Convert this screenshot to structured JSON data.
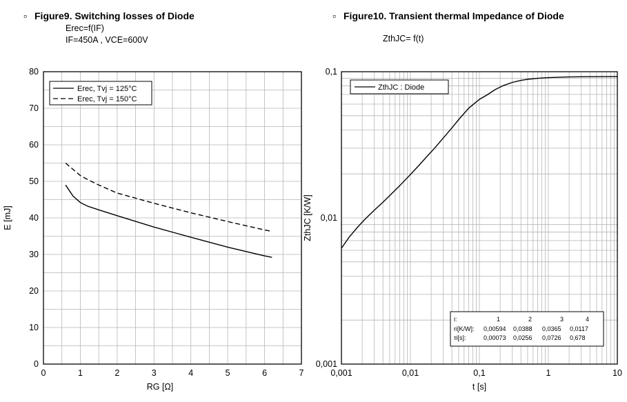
{
  "chart_data": [
    {
      "type": "line",
      "marker": "▫",
      "title": "Figure9. Switching losses of Diode",
      "subtitle_lines": [
        "Erec=f(IF)",
        "IF=450A , VCE=600V"
      ],
      "xlabel": "RG [Ω]",
      "ylabel": "E [mJ]",
      "xlim": [
        0,
        7
      ],
      "ylim": [
        0,
        80
      ],
      "xticks": [
        0,
        1,
        2,
        3,
        4,
        5,
        6,
        7
      ],
      "yticks": [
        0,
        10,
        20,
        30,
        40,
        50,
        60,
        70,
        80
      ],
      "grid": true,
      "legend_position": "top-left",
      "series": [
        {
          "name": "Erec, Tvj = 125°C",
          "style": "solid",
          "x": [
            0.6,
            0.8,
            1.0,
            1.2,
            1.5,
            2.0,
            3.0,
            4.0,
            5.0,
            6.0,
            6.2
          ],
          "y": [
            49,
            46,
            44.2,
            43.2,
            42.2,
            40.6,
            37.5,
            34.7,
            32.0,
            29.6,
            29.2
          ]
        },
        {
          "name": "Erec, Tvj = 150°C",
          "style": "dashed",
          "x": [
            0.6,
            0.8,
            1.0,
            1.2,
            1.5,
            2.0,
            3.0,
            4.0,
            5.0,
            6.0,
            6.2
          ],
          "y": [
            55,
            53.3,
            51.6,
            50.5,
            49.0,
            46.8,
            44.0,
            41.4,
            39.0,
            36.7,
            36.3
          ]
        }
      ]
    },
    {
      "type": "line",
      "marker": "▫",
      "title": "Figure10. Transient thermal Impedance of Diode",
      "subtitle": "ZthJC= f(t)",
      "xlabel": "t [s]",
      "ylabel": "ZthJC [K/W]",
      "xscale": "log",
      "yscale": "log",
      "xlim": [
        0.001,
        10
      ],
      "ylim": [
        0.001,
        0.1
      ],
      "xtick_labels": [
        "0,001",
        "0,01",
        "0,1",
        "1",
        "10"
      ],
      "ytick_labels": [
        "0,001",
        "0,01",
        "0,1"
      ],
      "grid": true,
      "legend_position": "top-left",
      "series": [
        {
          "name": "ZthJC : Diode",
          "style": "solid",
          "x": [
            0.001,
            0.0013,
            0.0017,
            0.0022,
            0.003,
            0.004,
            0.005,
            0.007,
            0.01,
            0.013,
            0.017,
            0.022,
            0.03,
            0.04,
            0.05,
            0.07,
            0.1,
            0.13,
            0.17,
            0.22,
            0.3,
            0.4,
            0.5,
            0.7,
            1,
            1.5,
            2,
            3,
            5,
            10
          ],
          "y": [
            0.0062,
            0.0074,
            0.0086,
            0.0098,
            0.0113,
            0.0128,
            0.0142,
            0.0166,
            0.0198,
            0.0226,
            0.026,
            0.0297,
            0.0352,
            0.0413,
            0.047,
            0.0563,
            0.0647,
            0.0695,
            0.0755,
            0.0802,
            0.0845,
            0.0872,
            0.0887,
            0.0901,
            0.0911,
            0.0918,
            0.0921,
            0.0924,
            0.0925,
            0.0927
          ]
        }
      ],
      "table": {
        "headers": [
          "i:",
          "1",
          "2",
          "3",
          "4"
        ],
        "rows": [
          {
            "label": "ri[K/W]:",
            "values": [
              "0,00594",
              "0,0388",
              "0,0365",
              "0,0117"
            ]
          },
          {
            "label": "τi[s]:",
            "values": [
              "0,00073",
              "0,0256",
              "0,0726",
              "0,678"
            ]
          }
        ]
      }
    }
  ]
}
